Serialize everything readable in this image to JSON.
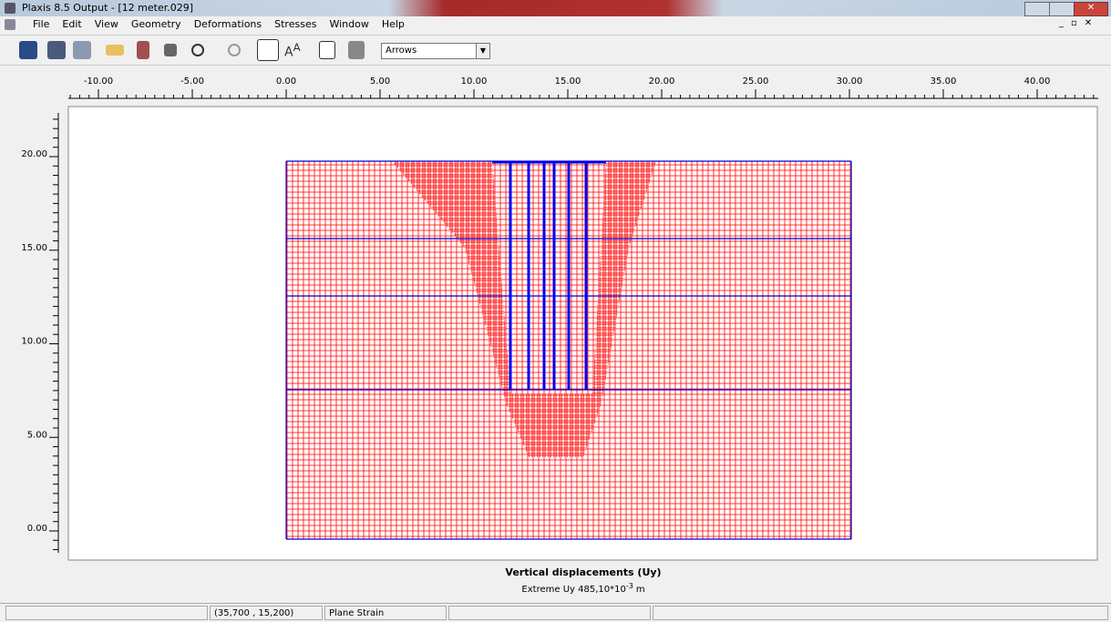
{
  "window": {
    "title": "Plaxis 8.5 Output - [12 meter.029]"
  },
  "menu": [
    "File",
    "Edit",
    "View",
    "Geometry",
    "Deformations",
    "Stresses",
    "Window",
    "Help"
  ],
  "toolbar": {
    "dropdown": "Arrows"
  },
  "ruler": {
    "x_labels": [
      "-10.00",
      "-5.00",
      "0.00",
      "5.00",
      "10.00",
      "15.00",
      "20.00",
      "25.00",
      "30.00",
      "35.00",
      "40.00"
    ],
    "y_labels": [
      "20.00",
      "15.00",
      "10.00",
      "5.00",
      "0.00"
    ]
  },
  "caption": {
    "title": "Vertical displacements (Uy)",
    "extreme": "Extreme Uy 485,10*10",
    "exponent": "-3",
    "unit": "m"
  },
  "status": {
    "coordinates": "(35,700 , 15,200)",
    "mode": "Plane Strain"
  }
}
